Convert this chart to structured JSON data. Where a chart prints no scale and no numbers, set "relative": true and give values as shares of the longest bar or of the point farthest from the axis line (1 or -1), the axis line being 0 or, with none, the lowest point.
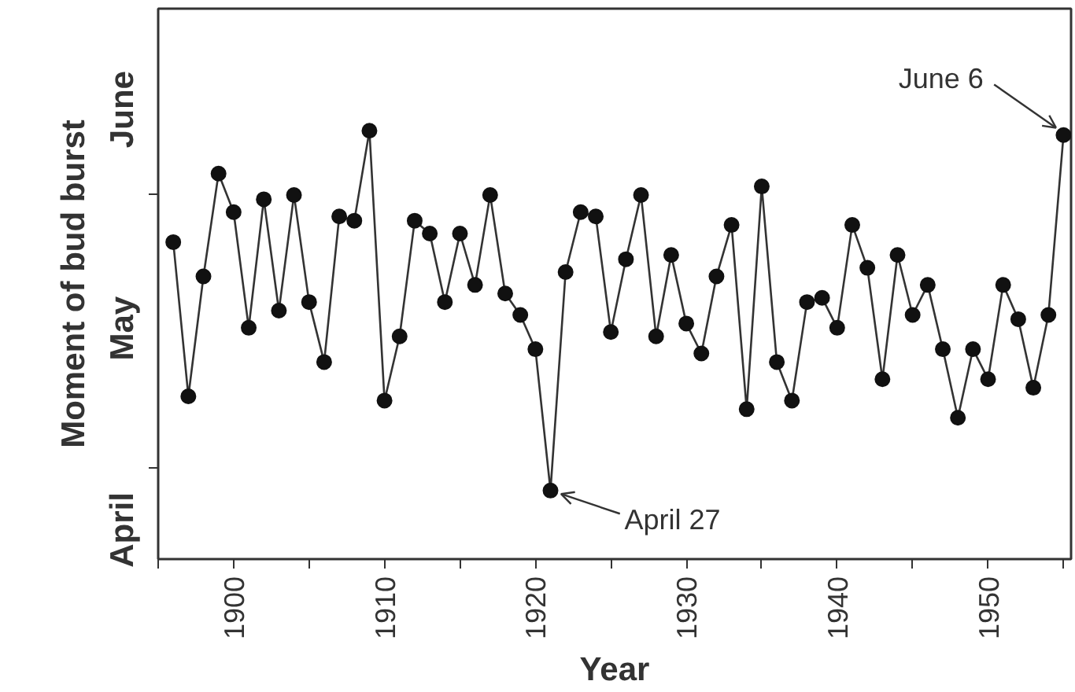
{
  "chart_data": {
    "type": "line",
    "xlabel": "Year",
    "ylabel": "Moment of bud burst",
    "x": [
      1896,
      1897,
      1898,
      1899,
      1900,
      1901,
      1902,
      1903,
      1904,
      1905,
      1906,
      1907,
      1908,
      1909,
      1910,
      1911,
      1912,
      1913,
      1914,
      1915,
      1916,
      1917,
      1918,
      1919,
      1920,
      1921,
      1922,
      1923,
      1924,
      1925,
      1926,
      1927,
      1928,
      1929,
      1930,
      1931,
      1932,
      1933,
      1934,
      1935,
      1936,
      1937,
      1938,
      1939,
      1940,
      1941,
      1942,
      1943,
      1944,
      1945,
      1946,
      1947,
      1948,
      1949,
      1950,
      1951,
      1952,
      1953,
      1954,
      1955
    ],
    "series": [
      {
        "color": "#333333",
        "values": [
          0.74,
          0.38,
          0.66,
          0.9,
          0.81,
          0.54,
          0.84,
          0.58,
          0.85,
          0.6,
          0.46,
          0.8,
          0.79,
          1.0,
          0.37,
          0.52,
          0.79,
          0.76,
          0.6,
          0.76,
          0.64,
          0.85,
          0.62,
          0.57,
          0.49,
          0.16,
          0.67,
          0.81,
          0.8,
          0.53,
          0.7,
          0.85,
          0.52,
          0.71,
          0.55,
          0.48,
          0.66,
          0.78,
          0.35,
          0.87,
          0.46,
          0.37,
          0.6,
          0.61,
          0.54,
          0.78,
          0.68,
          0.42,
          0.71,
          0.57,
          0.64,
          0.49,
          0.33,
          0.49,
          0.42,
          0.64,
          0.56,
          0.4,
          0.57,
          0.99
        ]
      }
    ],
    "relative": true,
    "marker": "circle",
    "line_style": "solid",
    "grid": false,
    "xlim": [
      1895,
      1955.5
    ],
    "xticks": [
      {
        "value": 1895,
        "label": null
      },
      1900,
      {
        "value": 1905,
        "label": null
      },
      1910,
      {
        "value": 1915,
        "label": null
      },
      1920,
      {
        "value": 1925,
        "label": null
      },
      1930,
      {
        "value": 1935,
        "label": null
      },
      1940,
      {
        "value": 1945,
        "label": null
      },
      1950,
      {
        "value": 1955,
        "label": null
      }
    ],
    "annotations": [
      {
        "text": "April 27",
        "x": 1921,
        "y": 0.16
      },
      {
        "text": "June 6",
        "x": 1955,
        "y": 0.99
      },
      "April",
      "May",
      "June"
    ]
  }
}
